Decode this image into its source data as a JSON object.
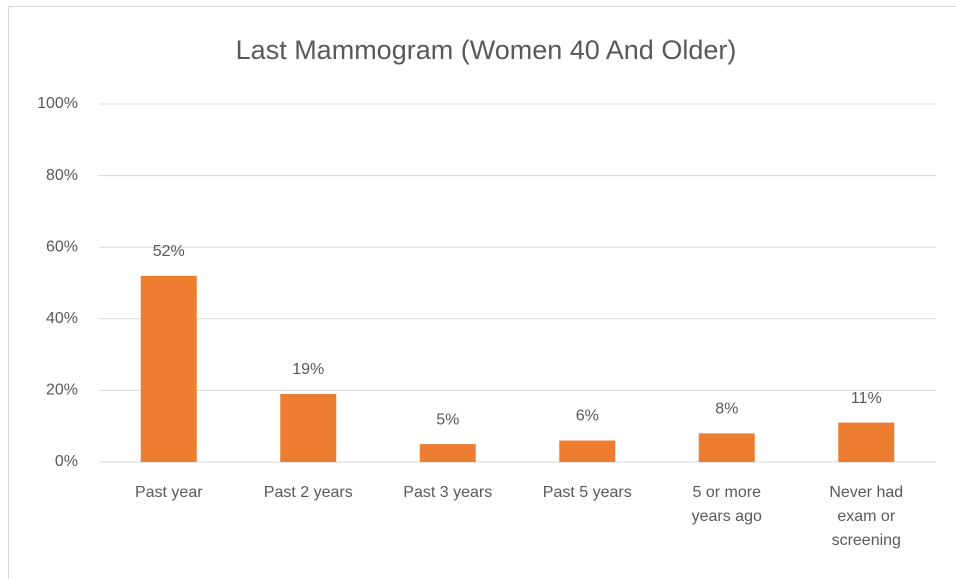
{
  "chart_data": {
    "type": "bar",
    "title": "Last Mammogram (Women 40 And Older)",
    "categories": [
      "Past year",
      "Past 2 years",
      "Past 3 years",
      "Past 5 years",
      "5 or more years ago",
      "Never had exam or screening"
    ],
    "values": [
      52,
      19,
      5,
      6,
      8,
      11
    ],
    "value_labels": [
      "52%",
      "19%",
      "5%",
      "6%",
      "8%",
      "11%"
    ],
    "color": "#ed7d31",
    "ylim": [
      0,
      100
    ],
    "yticks": [
      {
        "value": 0,
        "label": "0%"
      },
      {
        "value": 20,
        "label": "20%"
      },
      {
        "value": 40,
        "label": "40%"
      },
      {
        "value": 60,
        "label": "60%"
      },
      {
        "value": 80,
        "label": "80%"
      },
      {
        "value": 100,
        "label": "100%"
      }
    ],
    "grid": true
  }
}
